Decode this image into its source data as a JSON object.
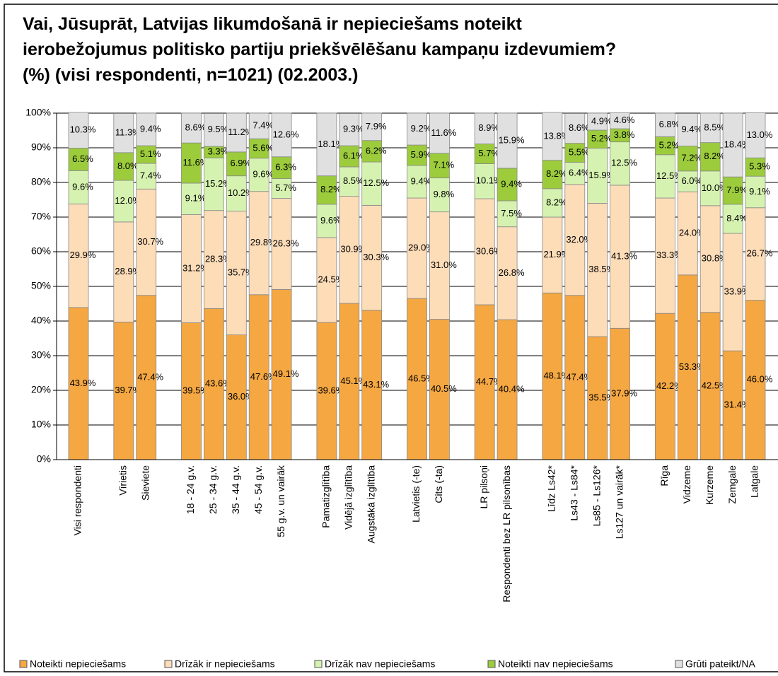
{
  "chart_data": {
    "type": "stacked_bar",
    "title": "Vai, Jūsuprāt, Latvijas likumdošanā ir nepieciešams noteikt ierobežojumus politisko partiju priekšvēlēšanu kampaņu izdevumiem? (%) (visi respondenti, n=1021) (02.2003.)",
    "categories": [
      "Visi respondenti",
      null,
      "Vīrietis",
      "Sieviete",
      null,
      "18 - 24 g.v.",
      "25 - 34 g.v.",
      "35 - 44 g.v.",
      "45 - 54 g.v.",
      "55 g.v. un vairāk",
      null,
      "Pamatizglītība",
      "Vidējā izglītība",
      "Augstākā izglītība",
      null,
      "Latvietis (-te)",
      "Cits (-ta)",
      null,
      "LR pilsoņi",
      "Respondenti bez LR pilsonības",
      null,
      "Līdz Ls42*",
      "Ls43 - Ls84*",
      "Ls85 - Ls126*",
      "Ls127 un vairāk*",
      null,
      "Rīga",
      "Vidzeme",
      "Kurzeme",
      "Zemgale",
      "Latgale"
    ],
    "ylim": [
      0,
      100
    ],
    "yticks": [
      {
        "value": 0,
        "label": "0%"
      },
      {
        "value": 10,
        "label": "10%"
      },
      {
        "value": 20,
        "label": "20%"
      },
      {
        "value": 30,
        "label": "30%"
      },
      {
        "value": 40,
        "label": "40%"
      },
      {
        "value": 50,
        "label": "50%"
      },
      {
        "value": 60,
        "label": "60%"
      },
      {
        "value": 70,
        "label": "70%"
      },
      {
        "value": 80,
        "label": "80%"
      },
      {
        "value": 90,
        "label": "90%"
      },
      {
        "value": 100,
        "label": "100%"
      }
    ],
    "grid": true,
    "legend": "bottom",
    "series": [
      {
        "name": "Noteikti nepieciešams",
        "color": "#f5a742",
        "values": [
          43.9,
          null,
          39.7,
          47.4,
          null,
          39.5,
          43.6,
          36.0,
          47.6,
          49.1,
          null,
          39.6,
          45.1,
          43.1,
          null,
          46.5,
          40.5,
          null,
          44.7,
          40.4,
          null,
          48.1,
          47.4,
          35.5,
          37.9,
          null,
          42.2,
          53.3,
          42.5,
          31.4,
          46.0
        ],
        "value_labels": [
          "43.9%",
          null,
          "39.7%",
          "47.4%",
          null,
          "39.5%",
          "43.6%",
          "36.0%",
          "47.6%",
          "49.1%",
          null,
          "39.6%",
          "45.1%",
          "43.1%",
          null,
          "46.5%",
          "40.5%",
          null,
          "44.7%",
          "40.4%",
          null,
          "48.1%",
          "47.4%",
          "35.5%",
          "37.9%",
          null,
          "42.2%",
          "53.3%",
          "42.5%",
          "31.4%",
          "46.0%"
        ]
      },
      {
        "name": "Drīzāk ir nepieciešams",
        "color": "#fddcb8",
        "values": [
          29.9,
          null,
          28.9,
          30.7,
          null,
          31.2,
          28.3,
          35.7,
          29.8,
          26.3,
          null,
          24.5,
          30.9,
          30.3,
          null,
          29.0,
          31.0,
          null,
          30.6,
          26.8,
          null,
          21.9,
          32.0,
          38.5,
          41.3,
          null,
          33.3,
          24.0,
          30.8,
          33.9,
          26.7
        ],
        "value_labels": [
          "29.9%",
          null,
          "28.9%",
          "30.7%",
          null,
          "31.2%",
          "28.3%",
          "35.7%",
          "29.8%",
          "26.3%",
          null,
          "24.5%",
          "30.9%",
          "30.3%",
          null,
          "29.0%",
          "31.0%",
          null,
          "30.6%",
          "26.8%",
          null,
          "21.9%",
          "32.0%",
          "38.5%",
          "41.3%",
          null,
          "33.3%",
          "24.0%",
          "30.8%",
          "33.9%",
          "26.7%"
        ]
      },
      {
        "name": "Drīzāk nav nepieciešams",
        "color": "#d6f2b0",
        "values": [
          9.6,
          null,
          12.0,
          7.4,
          null,
          9.1,
          15.2,
          10.2,
          9.6,
          5.7,
          null,
          9.6,
          8.5,
          12.5,
          null,
          9.4,
          9.8,
          null,
          10.1,
          7.5,
          null,
          8.2,
          6.4,
          15.9,
          12.5,
          null,
          12.5,
          6.0,
          10.0,
          8.4,
          9.1
        ],
        "value_labels": [
          "9.6%",
          null,
          "12.0%",
          "7.4%",
          null,
          "9.1%",
          "15.2%",
          "10.2%",
          "9.6%",
          "5.7%",
          null,
          "9.6%",
          "8.5%",
          "12.5%",
          null,
          "9.4%",
          "9.8%",
          null,
          "10.1%",
          "7.5%",
          null,
          "8.2%",
          "6.4%",
          "15.9%",
          "12.5%",
          null,
          "12.5%",
          "6.0%",
          "10.0%",
          "8.4%",
          "9.1%"
        ]
      },
      {
        "name": "Noteikti nav nepieciešams",
        "color": "#9ccc3c",
        "values": [
          6.5,
          null,
          8.0,
          5.1,
          null,
          11.6,
          3.3,
          6.9,
          5.6,
          6.3,
          null,
          8.2,
          6.1,
          6.2,
          null,
          5.9,
          7.1,
          null,
          5.7,
          9.4,
          null,
          8.2,
          5.5,
          5.2,
          3.8,
          null,
          5.2,
          7.2,
          8.2,
          7.9,
          5.3
        ],
        "value_labels": [
          "6.5%",
          null,
          "8.0%",
          "5.1%",
          null,
          "11.6%",
          "3.3%",
          "6.9%",
          "5.6%",
          "6.3%",
          null,
          "8.2%",
          "6.1%",
          "6.2%",
          null,
          "5.9%",
          "7.1%",
          null,
          "5.7%",
          "9.4%",
          null,
          "8.2%",
          "5.5%",
          "5.2%",
          "3.8%",
          null,
          "5.2%",
          "7.2%",
          "8.2%",
          "7.9%",
          "5.3%"
        ]
      },
      {
        "name": "Grūti pateikt/NA",
        "color": "#e0e0e0",
        "values": [
          10.3,
          null,
          11.3,
          9.4,
          null,
          8.6,
          9.5,
          11.2,
          7.4,
          12.6,
          null,
          18.1,
          9.3,
          7.9,
          null,
          9.2,
          11.6,
          null,
          8.9,
          15.9,
          null,
          13.8,
          8.6,
          4.9,
          4.6,
          null,
          6.8,
          9.4,
          8.5,
          18.4,
          13.0
        ],
        "value_labels": [
          "10.3%",
          null,
          "11.3%",
          "9.4%",
          null,
          "8.6%",
          "9.5%",
          "11.2%",
          "7.4%",
          "12.6%",
          null,
          "18.1%",
          "9.3%",
          "7.9%",
          null,
          "9.2%",
          "11.6%",
          null,
          "8.9%",
          "15.9%",
          null,
          "13.8%",
          "8.6%",
          "4.9%",
          "4.6%",
          null,
          "6.8%",
          "9.4%",
          "8.5%",
          "18.4%",
          "13.0%"
        ]
      }
    ]
  }
}
